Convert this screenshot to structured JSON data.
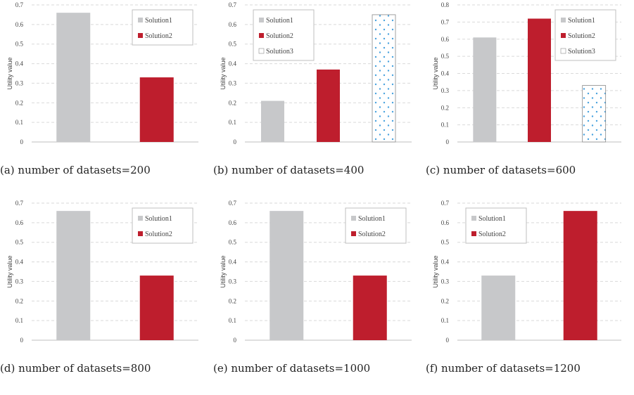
{
  "colors": {
    "solution1": "#c7c8ca",
    "solution2": "#be1e2d",
    "solution3_fill": "#ffffff",
    "solution3_dot": "#4aa3df",
    "grid": "#d9d9d9",
    "axis": "#bfbfbf"
  },
  "chart_data": [
    {
      "type": "bar",
      "caption": "(a) number of datasets=200",
      "ylabel": "Utility value",
      "ylim": [
        0,
        0.7
      ],
      "yticks": [
        "0",
        "0.1",
        "0.2",
        "0.3",
        "0.4",
        "0.5",
        "0.6",
        "0.7"
      ],
      "legend_position": "top-right",
      "series": [
        {
          "name": "Solution1",
          "value": 0.66
        },
        {
          "name": "Solution2",
          "value": 0.33
        }
      ]
    },
    {
      "type": "bar",
      "caption": "(b) number of datasets=400",
      "ylabel": "Utility value",
      "ylim": [
        0,
        0.7
      ],
      "yticks": [
        "0",
        "0.1",
        "0.2",
        "0.3",
        "0.4",
        "0.5",
        "0.6",
        "0.7"
      ],
      "legend_position": "top-left",
      "series": [
        {
          "name": "Solution1",
          "value": 0.21
        },
        {
          "name": "Solution2",
          "value": 0.37
        },
        {
          "name": "Solution3",
          "value": 0.65
        }
      ]
    },
    {
      "type": "bar",
      "caption": "(c) number of datasets=600",
      "ylabel": "Utility value",
      "ylim": [
        0,
        0.8
      ],
      "yticks": [
        "0",
        "0.1",
        "0.2",
        "0.3",
        "0.4",
        "0.5",
        "0.6",
        "0.7",
        "0.8"
      ],
      "legend_position": "top-right",
      "series": [
        {
          "name": "Solution1",
          "value": 0.61
        },
        {
          "name": "Solution2",
          "value": 0.72
        },
        {
          "name": "Solution3",
          "value": 0.33
        }
      ]
    },
    {
      "type": "bar",
      "caption": "(d) number of datasets=800",
      "ylabel": "Utility value",
      "ylim": [
        0,
        0.7
      ],
      "yticks": [
        "0",
        "0.1",
        "0.2",
        "0.3",
        "0.4",
        "0.5",
        "0.6",
        "0.7"
      ],
      "legend_position": "top-right",
      "series": [
        {
          "name": "Solution1",
          "value": 0.66
        },
        {
          "name": "Solution2",
          "value": 0.33
        }
      ]
    },
    {
      "type": "bar",
      "caption": "(e) number of datasets=1000",
      "ylabel": "Utility value",
      "ylim": [
        0,
        0.7
      ],
      "yticks": [
        "0",
        "0.1",
        "0.2",
        "0.3",
        "0.4",
        "0.5",
        "0.6",
        "0.7"
      ],
      "legend_position": "top-right",
      "series": [
        {
          "name": "Solution1",
          "value": 0.66
        },
        {
          "name": "Solution2",
          "value": 0.33
        }
      ]
    },
    {
      "type": "bar",
      "caption": "(f) number of datasets=1200",
      "ylabel": "Utility value",
      "ylim": [
        0,
        0.7
      ],
      "yticks": [
        "0",
        "0.1",
        "0.2",
        "0.3",
        "0.4",
        "0.5",
        "0.6",
        "0.7"
      ],
      "legend_position": "top-left",
      "series": [
        {
          "name": "Solution1",
          "value": 0.33
        },
        {
          "name": "Solution2",
          "value": 0.66
        }
      ]
    }
  ]
}
